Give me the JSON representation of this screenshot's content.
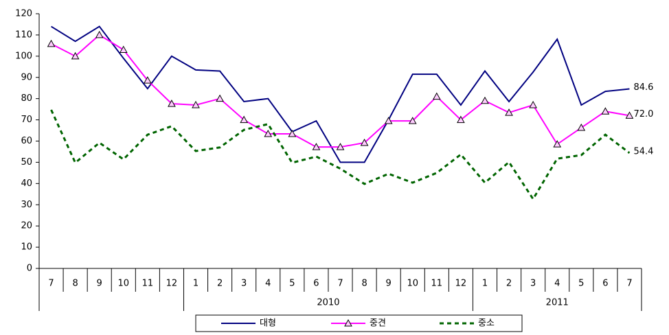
{
  "chart_data": {
    "type": "line",
    "categories": [
      "7",
      "8",
      "9",
      "10",
      "11",
      "12",
      "1",
      "2",
      "3",
      "4",
      "5",
      "6",
      "7",
      "8",
      "9",
      "10",
      "11",
      "12",
      "1",
      "2",
      "3",
      "4",
      "5",
      "6",
      "7"
    ],
    "x_groups": [
      {
        "label": "2010",
        "from": 6,
        "to": 17
      },
      {
        "label": "2011",
        "from": 18,
        "to": 24
      }
    ],
    "series": [
      {
        "name": "대형",
        "color": "#000080",
        "style": "solid",
        "marker": "none",
        "values": [
          114,
          107,
          114,
          99,
          84.7,
          100,
          93.5,
          93,
          78.6,
          80,
          64.4,
          69.5,
          50,
          50,
          70,
          91.5,
          91.5,
          77,
          93,
          78.6,
          92.5,
          108,
          77,
          83.4,
          84.6
        ],
        "value_labels": [
          null,
          null,
          null,
          null,
          null,
          null,
          null,
          null,
          null,
          null,
          null,
          null,
          null,
          null,
          null,
          null,
          null,
          null,
          null,
          null,
          null,
          null,
          null,
          null,
          "84.6"
        ]
      },
      {
        "name": "중견",
        "color": "#ff00ff",
        "style": "solid",
        "marker": "triangle",
        "values": [
          105.8,
          100,
          110,
          103,
          88.6,
          77.6,
          77,
          80,
          70,
          63.4,
          63.4,
          57.2,
          57.2,
          59.2,
          69.5,
          69.5,
          81,
          70,
          79,
          73.4,
          77,
          58.5,
          66.3,
          74,
          72
        ],
        "value_labels": [
          null,
          null,
          null,
          null,
          null,
          null,
          null,
          null,
          null,
          null,
          null,
          null,
          null,
          null,
          null,
          null,
          null,
          null,
          null,
          null,
          null,
          null,
          null,
          null,
          "72.0"
        ]
      },
      {
        "name": "중소",
        "color": "#006400",
        "style": "dashed",
        "marker": "none",
        "values": [
          74.7,
          49.8,
          59.2,
          51.4,
          63,
          67,
          55.3,
          57,
          65.3,
          68,
          49.8,
          52.7,
          47,
          39.8,
          44.6,
          40.4,
          45,
          53.7,
          40.4,
          50.1,
          32.7,
          51.7,
          53.4,
          63,
          54.4
        ],
        "value_labels": [
          null,
          null,
          null,
          null,
          null,
          null,
          null,
          null,
          null,
          null,
          null,
          null,
          null,
          null,
          null,
          null,
          null,
          null,
          null,
          null,
          null,
          null,
          null,
          null,
          "54.4"
        ]
      }
    ],
    "ylim": [
      0,
      120
    ],
    "yticks": [
      0,
      10,
      20,
      30,
      40,
      50,
      60,
      70,
      80,
      90,
      100,
      110,
      120
    ],
    "grid": false
  }
}
